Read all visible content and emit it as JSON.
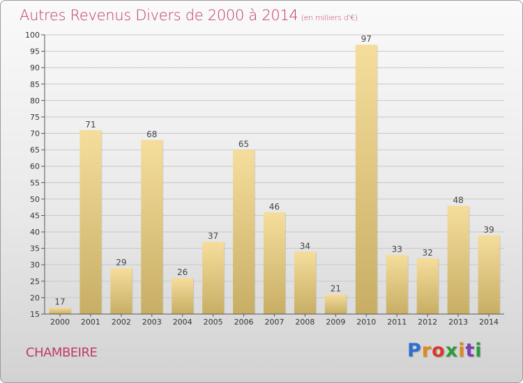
{
  "title": "Autres Revenus Divers de 2000 à 2014",
  "subtitle": "(en milliers d'€)",
  "city": "CHAMBEIRE",
  "logo": {
    "text": "Proxiti",
    "colors": [
      "#2f6fd1",
      "#e08a18",
      "#d83a2a",
      "#2a9b3a",
      "#e08a18",
      "#7a3fb0",
      "#2a9b3a"
    ]
  },
  "colors": {
    "title": "#bf3a6a",
    "bar_light": "#f5dd9c",
    "bar_dark": "#c8ae64",
    "grid": "#c8c8c8"
  },
  "chart_data": {
    "type": "bar",
    "categories": [
      "2000",
      "2001",
      "2002",
      "2003",
      "2004",
      "2005",
      "2006",
      "2007",
      "2008",
      "2009",
      "2010",
      "2011",
      "2012",
      "2013",
      "2014"
    ],
    "values": [
      17,
      71,
      29,
      68,
      26,
      37,
      65,
      46,
      34,
      21,
      97,
      33,
      32,
      48,
      39
    ],
    "ylim": [
      15,
      100
    ],
    "yticks": [
      15,
      20,
      25,
      30,
      35,
      40,
      45,
      50,
      55,
      60,
      65,
      70,
      75,
      80,
      85,
      90,
      95,
      100
    ],
    "xlabel": "",
    "ylabel": "",
    "grid": true,
    "data_labels": true
  }
}
